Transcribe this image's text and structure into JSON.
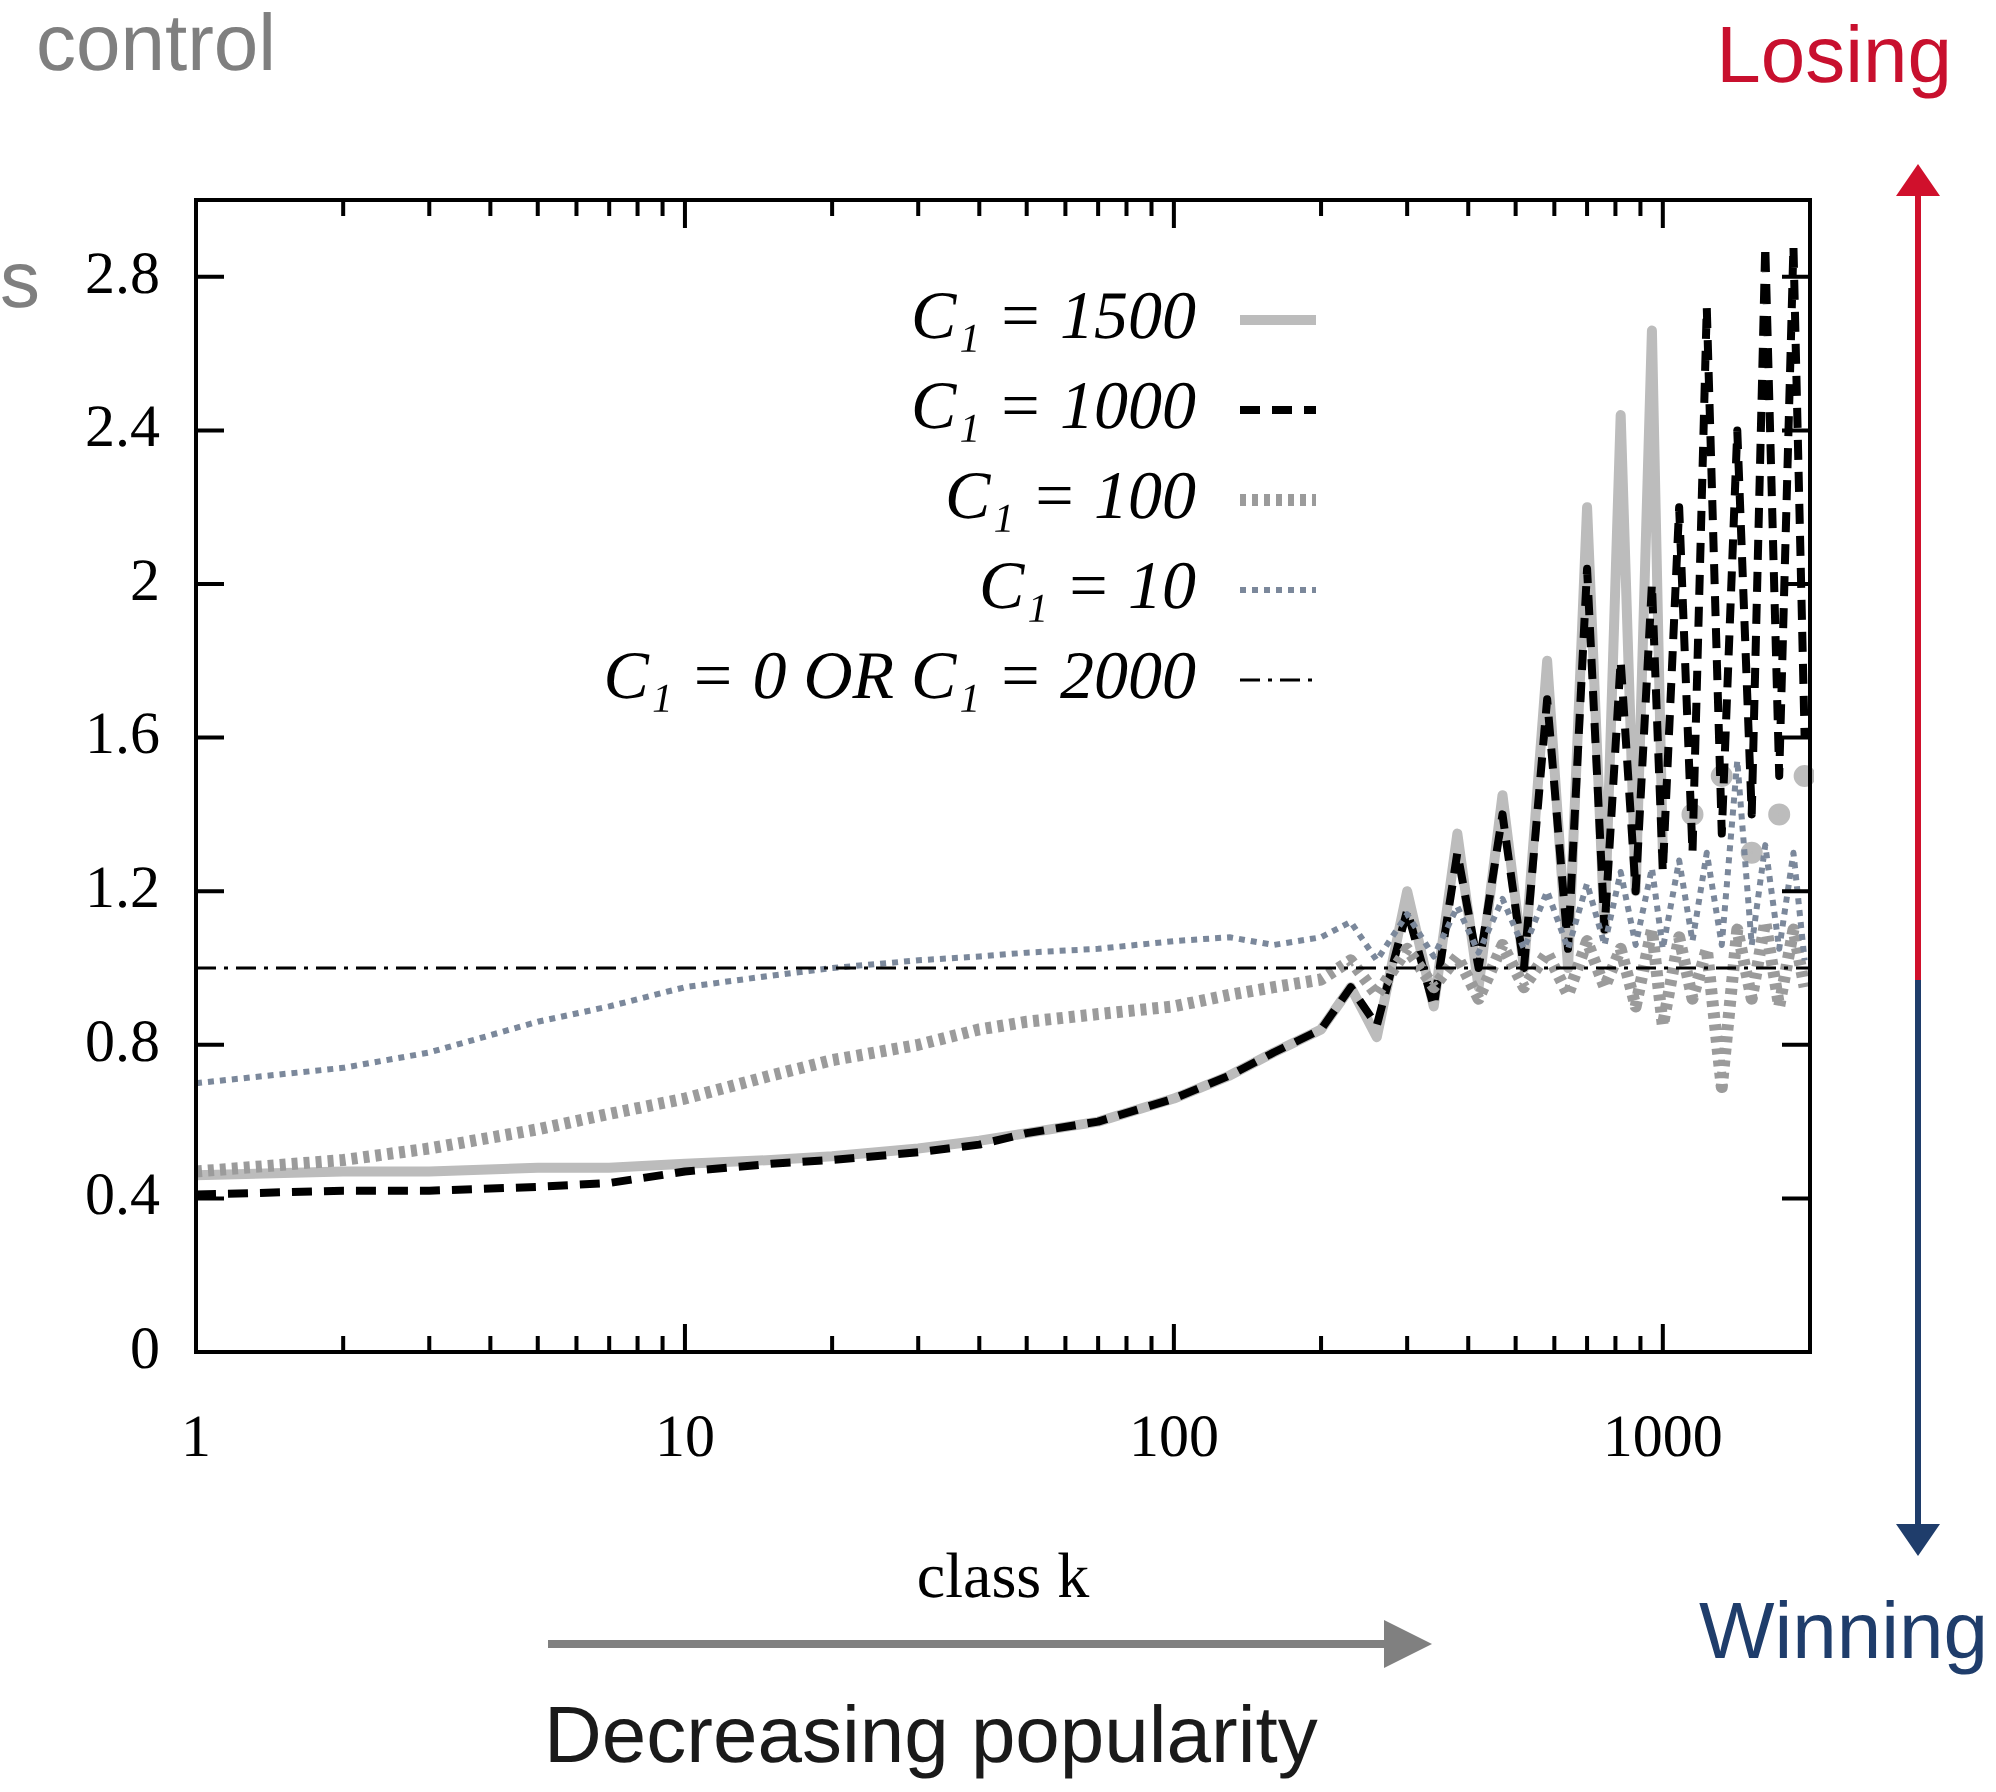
{
  "chart_data": {
    "type": "line",
    "xlabel": "class k",
    "ylabel": "s",
    "log": "x",
    "marker": "none",
    "legend": "top right",
    "xlim": [
      1,
      2000
    ],
    "xticks": [
      1,
      {
        "value": 2,
        "label": null
      },
      {
        "value": 3,
        "label": null
      },
      {
        "value": 4,
        "label": null
      },
      {
        "value": 5,
        "label": null
      },
      {
        "value": 6,
        "label": null
      },
      {
        "value": 7,
        "label": null
      },
      {
        "value": 8,
        "label": null
      },
      {
        "value": 9,
        "label": null
      },
      10,
      {
        "value": 20,
        "label": null
      },
      {
        "value": 30,
        "label": null
      },
      {
        "value": 40,
        "label": null
      },
      {
        "value": 50,
        "label": null
      },
      {
        "value": 60,
        "label": null
      },
      {
        "value": 70,
        "label": null
      },
      {
        "value": 80,
        "label": null
      },
      {
        "value": 90,
        "label": null
      },
      100,
      {
        "value": 200,
        "label": null
      },
      {
        "value": 300,
        "label": null
      },
      {
        "value": 400,
        "label": null
      },
      {
        "value": 500,
        "label": null
      },
      {
        "value": 600,
        "label": null
      },
      {
        "value": 700,
        "label": null
      },
      {
        "value": 800,
        "label": null
      },
      {
        "value": 900,
        "label": null
      },
      1000
    ],
    "ylim": [
      0,
      3
    ],
    "yticks": [
      0,
      0.4,
      0.8,
      1.2,
      1.6,
      2,
      2.4,
      2.8
    ],
    "annotations": [
      "control",
      "Losing",
      "Winning",
      "Decreasing popularity"
    ],
    "series": [
      {
        "name": "C₁ = 1500",
        "color": "#bcbcbc",
        "line_style": "solid",
        "x": [
          1,
          2,
          3,
          5,
          7,
          10,
          15,
          20,
          30,
          40,
          50,
          70,
          100,
          130,
          160,
          200,
          230,
          260,
          300,
          340,
          380,
          420,
          470,
          520,
          580,
          640,
          700,
          760,
          820,
          880,
          950,
          1000,
          1080,
          1150,
          1230,
          1320,
          1420,
          1520,
          1620,
          1730,
          1850,
          1950
        ],
        "values": [
          0.46,
          0.47,
          0.47,
          0.48,
          0.48,
          0.49,
          0.5,
          0.51,
          0.53,
          0.55,
          0.57,
          0.6,
          0.66,
          0.72,
          0.78,
          0.84,
          0.95,
          0.82,
          1.2,
          0.9,
          1.35,
          0.95,
          1.45,
          1.0,
          1.8,
          1.0,
          2.2,
          1.1,
          2.44,
          1.2,
          2.66,
          1.3,
          null,
          1.4,
          null,
          1.5,
          null,
          1.3,
          null,
          1.4,
          null,
          1.5
        ]
      },
      {
        "name": "C₁ = 1000",
        "color": "#000000",
        "line_style": "dashed",
        "x": [
          1,
          2,
          3,
          5,
          7,
          10,
          15,
          20,
          30,
          40,
          50,
          70,
          100,
          130,
          160,
          200,
          230,
          260,
          300,
          340,
          380,
          420,
          470,
          520,
          580,
          640,
          700,
          760,
          820,
          880,
          950,
          1000,
          1080,
          1150,
          1230,
          1320,
          1420,
          1520,
          1620,
          1730,
          1850,
          1950
        ],
        "values": [
          0.41,
          0.42,
          0.42,
          0.43,
          0.44,
          0.47,
          0.49,
          0.5,
          0.52,
          0.54,
          0.57,
          0.6,
          0.66,
          0.72,
          0.78,
          0.84,
          0.95,
          0.85,
          1.15,
          0.9,
          1.3,
          1.0,
          1.4,
          1.0,
          1.7,
          1.05,
          2.04,
          1.1,
          1.8,
          1.2,
          2.0,
          1.25,
          2.2,
          1.3,
          2.72,
          1.35,
          2.4,
          1.4,
          2.88,
          1.5,
          2.88,
          1.6
        ]
      },
      {
        "name": "C₁ = 100",
        "color": "#9b9b9b",
        "line_style": "dotted",
        "x": [
          1,
          2,
          3,
          5,
          7,
          10,
          15,
          20,
          30,
          40,
          50,
          70,
          100,
          130,
          160,
          200,
          230,
          260,
          300,
          340,
          380,
          420,
          470,
          520,
          580,
          640,
          700,
          760,
          820,
          880,
          950,
          1000,
          1080,
          1150,
          1230,
          1320,
          1420,
          1520,
          1620,
          1730,
          1850,
          1950
        ],
        "values": [
          0.47,
          0.5,
          0.53,
          0.58,
          0.62,
          0.66,
          0.72,
          0.76,
          0.8,
          0.84,
          0.86,
          0.88,
          0.9,
          0.93,
          0.95,
          0.97,
          1.02,
          0.93,
          1.05,
          0.95,
          1.03,
          0.92,
          1.06,
          0.95,
          1.04,
          0.93,
          1.07,
          0.95,
          1.05,
          0.9,
          1.1,
          0.85,
          1.08,
          0.92,
          1.05,
          0.69,
          1.1,
          0.92,
          1.12,
          0.9,
          1.1,
          0.95
        ]
      },
      {
        "name": "C₁ = 10",
        "color": "#7b889b",
        "line_style": "dotted",
        "x": [
          1,
          2,
          3,
          5,
          7,
          10,
          15,
          20,
          30,
          40,
          50,
          70,
          100,
          130,
          160,
          200,
          230,
          260,
          300,
          340,
          380,
          420,
          470,
          520,
          580,
          640,
          700,
          760,
          820,
          880,
          950,
          1000,
          1080,
          1150,
          1230,
          1320,
          1420,
          1520,
          1620,
          1730,
          1850,
          1950
        ],
        "values": [
          0.7,
          0.74,
          0.78,
          0.86,
          0.9,
          0.95,
          0.98,
          1.0,
          1.02,
          1.03,
          1.04,
          1.05,
          1.07,
          1.08,
          1.06,
          1.08,
          1.12,
          1.02,
          1.14,
          1.03,
          1.16,
          1.04,
          1.18,
          1.05,
          1.2,
          1.05,
          1.22,
          1.06,
          1.25,
          1.06,
          1.26,
          1.05,
          1.28,
          1.07,
          1.3,
          1.06,
          1.54,
          1.06,
          1.32,
          1.05,
          1.3,
          1.02
        ]
      },
      {
        "name": "C₁ = 0 OR C₁ = 2000",
        "color": "#000000",
        "line_style": "dashdot",
        "x": [
          1,
          2000
        ],
        "values": [
          1,
          1
        ]
      }
    ]
  }
}
